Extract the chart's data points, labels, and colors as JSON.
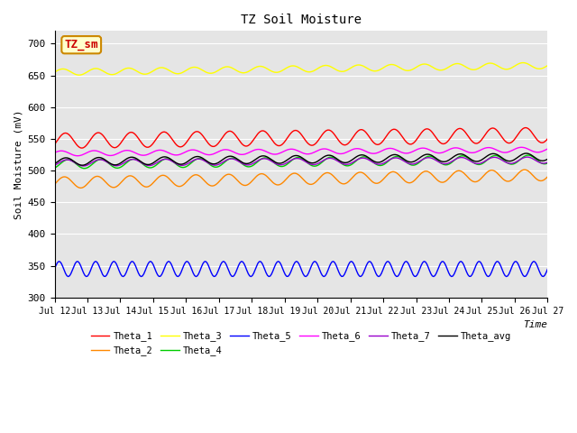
{
  "title": "TZ Soil Moisture",
  "xlabel": "Time",
  "ylabel": "Soil Moisture (mV)",
  "ylim": [
    300,
    720
  ],
  "yticks": [
    300,
    350,
    400,
    450,
    500,
    550,
    600,
    650,
    700
  ],
  "x_label_days": [
    "Jul 12",
    "Jul 13",
    "Jul 14",
    "Jul 15",
    "Jul 16",
    "Jul 17",
    "Jul 18",
    "Jul 19",
    "Jul 20",
    "Jul 21",
    "Jul 22",
    "Jul 23",
    "Jul 24",
    "Jul 25",
    "Jul 26",
    "Jul 27"
  ],
  "background_color": "#e5e5e5",
  "series_order": [
    "Theta_1",
    "Theta_2",
    "Theta_3",
    "Theta_4",
    "Theta_5",
    "Theta_6",
    "Theta_7",
    "Theta_avg"
  ],
  "series": {
    "Theta_1": {
      "color": "#ff0000",
      "base": 547,
      "trend": 0.6,
      "amp": 12,
      "freq": 1.0,
      "phase": -0.5
    },
    "Theta_2": {
      "color": "#ff8800",
      "base": 481,
      "trend": 0.8,
      "amp": 9,
      "freq": 1.0,
      "phase": -0.3
    },
    "Theta_3": {
      "color": "#ffff00",
      "base": 655,
      "trend": 0.7,
      "amp": 5,
      "freq": 1.0,
      "phase": 0.0
    },
    "Theta_4": {
      "color": "#00cc00",
      "base": 510,
      "trend": 0.5,
      "amp": 7,
      "freq": 1.0,
      "phase": -1.0
    },
    "Theta_5": {
      "color": "#0000ff",
      "base": 345,
      "trend": 0.0,
      "amp": 12,
      "freq": 1.8,
      "phase": 0.0
    },
    "Theta_6": {
      "color": "#ff00ff",
      "base": 527,
      "trend": 0.4,
      "amp": 4,
      "freq": 1.0,
      "phase": 0.3
    },
    "Theta_7": {
      "color": "#9900cc",
      "base": 512,
      "trend": 0.3,
      "amp": 5,
      "freq": 1.0,
      "phase": -0.8
    },
    "Theta_avg": {
      "color": "#000000",
      "base": 514,
      "trend": 0.5,
      "amp": 6,
      "freq": 1.0,
      "phase": -0.6
    }
  },
  "legend_label": "TZ_sm",
  "legend_bg": "#ffffcc",
  "legend_border": "#cc8800"
}
